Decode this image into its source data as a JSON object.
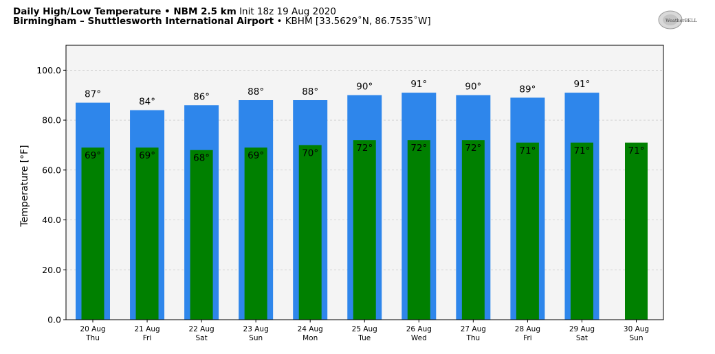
{
  "header": {
    "title_bold": "Daily High/Low Temperature • NBM 2.5 km",
    "init_text": "Init 18z 19 Aug 2020",
    "location_bold": "Birmingham – Shuttlesworth International Airport",
    "location_detail": "• KBHM [33.5629˚N, 86.7535˚W]"
  },
  "logo": {
    "icon": "weatherbell-logo",
    "text": "WeatherBELL"
  },
  "colors": {
    "high_bar": "#2e86eb",
    "low_bar": "#008000",
    "plot_bg": "#f4f4f4",
    "grid": "#c8c8c8"
  },
  "chart_data": {
    "type": "bar",
    "ylabel": "Temperature [°F]",
    "ylim": [
      0,
      110
    ],
    "yticks": [
      "0.0",
      "20.0",
      "40.0",
      "60.0",
      "80.0",
      "100.0"
    ],
    "grid": true,
    "categories": [
      [
        "20 Aug",
        "Thu"
      ],
      [
        "21 Aug",
        "Fri"
      ],
      [
        "22 Aug",
        "Sat"
      ],
      [
        "23 Aug",
        "Sun"
      ],
      [
        "24 Aug",
        "Mon"
      ],
      [
        "25 Aug",
        "Tue"
      ],
      [
        "26 Aug",
        "Wed"
      ],
      [
        "27 Aug",
        "Thu"
      ],
      [
        "28 Aug",
        "Fri"
      ],
      [
        "29 Aug",
        "Sat"
      ],
      [
        "30 Aug",
        "Sun"
      ]
    ],
    "series": [
      {
        "key": "high",
        "values": [
          87,
          84,
          86,
          88,
          88,
          90,
          91,
          90,
          89,
          91,
          null
        ]
      },
      {
        "key": "low",
        "values": [
          69,
          69,
          68,
          69,
          70,
          72,
          72,
          72,
          71,
          71,
          71
        ]
      }
    ]
  }
}
